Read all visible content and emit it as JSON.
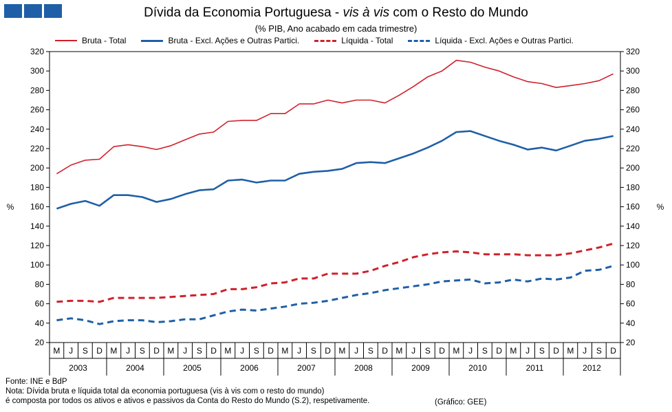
{
  "header": {
    "title_prefix": "Dívida da Economia Portuguesa - ",
    "title_italic": "vis à vis",
    "title_suffix": " com o Resto do Mundo",
    "subtitle": "(% PIB, Ano acabado em cada trimestre)"
  },
  "colors": {
    "red": "#d0202a",
    "blue": "#1f5fa8",
    "logo": "#1f5fa8"
  },
  "chart_data": {
    "type": "line",
    "ylabel_left": "%",
    "ylabel_right": "%",
    "ylim": [
      20,
      320
    ],
    "yticks": [
      20,
      40,
      60,
      80,
      100,
      120,
      140,
      160,
      180,
      200,
      220,
      240,
      260,
      280,
      300,
      320
    ],
    "quarters": [
      "M",
      "J",
      "S",
      "D",
      "M",
      "J",
      "S",
      "D",
      "M",
      "J",
      "S",
      "D",
      "M",
      "J",
      "S",
      "D",
      "M",
      "J",
      "S",
      "D",
      "M",
      "J",
      "S",
      "D",
      "M",
      "J",
      "S",
      "D",
      "M",
      "J",
      "S",
      "D",
      "M",
      "J",
      "S",
      "D",
      "M",
      "J",
      "S",
      "D"
    ],
    "years": [
      "2003",
      "2004",
      "2005",
      "2006",
      "2007",
      "2008",
      "2009",
      "2010",
      "2011",
      "2012"
    ],
    "series": [
      {
        "name": "Bruta - Total",
        "color": "#d0202a",
        "style": "solid",
        "width": 1.6,
        "values": [
          194,
          203,
          208,
          209,
          222,
          224,
          222,
          219,
          223,
          229,
          235,
          237,
          248,
          249,
          249,
          256,
          256,
          266,
          266,
          270,
          267,
          270,
          270,
          267,
          275,
          284,
          294,
          300,
          311,
          309,
          304,
          300,
          294,
          289,
          287,
          283,
          285,
          287,
          290,
          297
        ]
      },
      {
        "name": "Bruta - Excl. Ações e Outras Partici.",
        "color": "#1f5fa8",
        "style": "solid",
        "width": 2.6,
        "values": [
          158,
          163,
          166,
          161,
          172,
          172,
          170,
          165,
          168,
          173,
          177,
          178,
          187,
          188,
          185,
          187,
          187,
          194,
          196,
          197,
          199,
          205,
          206,
          205,
          210,
          215,
          221,
          228,
          237,
          238,
          233,
          228,
          224,
          219,
          221,
          218,
          223,
          228,
          230,
          233
        ]
      },
      {
        "name": "Líquida - Total",
        "color": "#d0202a",
        "style": "dashed",
        "width": 3,
        "values": [
          62,
          63,
          63,
          62,
          66,
          66,
          66,
          66,
          67,
          68,
          69,
          70,
          75,
          75,
          77,
          81,
          82,
          86,
          86,
          91,
          91,
          91,
          94,
          99,
          103,
          108,
          111,
          113,
          114,
          113,
          111,
          111,
          111,
          110,
          110,
          110,
          112,
          115,
          118,
          122
        ]
      },
      {
        "name": "Líquida - Excl. Ações e Outras Partici.",
        "color": "#1f5fa8",
        "style": "dashed",
        "width": 3,
        "values": [
          43,
          45,
          43,
          39,
          42,
          43,
          43,
          41,
          42,
          44,
          44,
          48,
          52,
          54,
          53,
          55,
          57,
          60,
          61,
          63,
          66,
          69,
          71,
          74,
          76,
          78,
          80,
          83,
          84,
          85,
          81,
          82,
          85,
          83,
          86,
          85,
          87,
          94,
          95,
          99
        ]
      }
    ]
  },
  "footer": {
    "source": "Fonte: INE e BdP",
    "note_line1": "Nota: Dívida bruta e líquida total da economia portuguesa (vis à vis com o resto do mundo)",
    "note_line2": "é composta por todos os ativos e ativos e passivos da Conta do Resto do Mundo (S.2), respetivamente.",
    "credit": "(Gráfico: GEE)"
  }
}
